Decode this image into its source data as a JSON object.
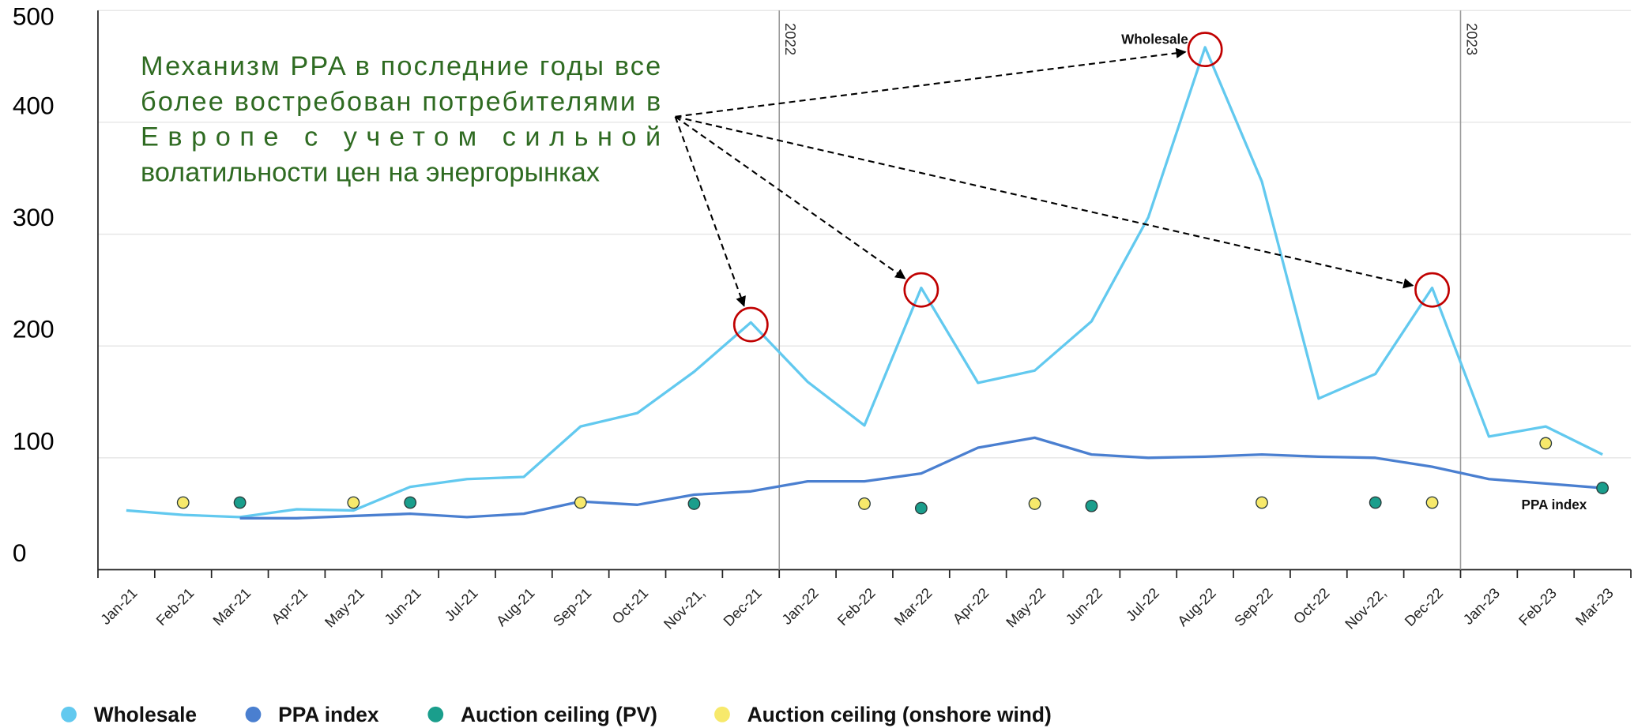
{
  "chart_data": {
    "type": "line",
    "categories": [
      "Jan-21",
      "Feb-21",
      "Mar-21",
      "Apr-21",
      "May-21",
      "Jun-21",
      "Jul-21",
      "Aug-21",
      "Sep-21",
      "Oct-21",
      "Nov-21,",
      "Dec-21",
      "Jan-22",
      "Feb-22",
      "Mar-22",
      "Apr-22",
      "May-22",
      "Jun-22",
      "Jul-22",
      "Aug-22",
      "Sep-22",
      "Oct-22",
      "Nov-22,",
      "Dec-22",
      "Jan-23",
      "Feb-23",
      "Mar-23"
    ],
    "series": [
      {
        "name": "Wholesale",
        "color": "#62c9ef",
        "style": "line",
        "values": [
          53,
          49,
          47,
          54,
          53,
          74,
          81,
          83,
          128,
          140,
          177,
          221,
          168,
          129,
          252,
          167,
          178,
          222,
          315,
          467,
          347,
          153,
          175,
          252,
          119,
          128,
          103
        ]
      },
      {
        "name": "PPA index",
        "color": "#4a7fd0",
        "style": "line",
        "values": [
          null,
          null,
          46,
          46,
          48,
          50,
          47,
          50,
          61,
          58,
          67,
          70,
          79,
          79,
          86,
          109,
          118,
          103,
          100,
          101,
          103,
          101,
          100,
          92,
          81,
          77,
          73
        ]
      },
      {
        "name": "Auction ceiling (PV)",
        "color": "#1a9e8c",
        "style": "dot",
        "values": [
          null,
          null,
          60,
          null,
          null,
          60,
          null,
          null,
          null,
          null,
          59,
          null,
          null,
          null,
          55,
          null,
          null,
          57,
          null,
          null,
          null,
          null,
          60,
          null,
          null,
          null,
          73
        ]
      },
      {
        "name": "Auction ceiling (onshore wind)",
        "color": "#f7e96b",
        "style": "dot",
        "values": [
          null,
          60,
          null,
          null,
          60,
          null,
          null,
          null,
          60,
          null,
          null,
          null,
          null,
          59,
          null,
          null,
          59,
          null,
          null,
          null,
          60,
          null,
          null,
          60,
          null,
          113,
          null
        ]
      }
    ],
    "ylim": [
      0,
      500
    ],
    "yticks": [
      0,
      100,
      200,
      300,
      400,
      500
    ],
    "grid": true,
    "legend": "bottom-left",
    "annotation_lines": [
      "Механизм PPA в последние годы все",
      "более востребован потребителями в",
      "Европе с учетом сильной",
      "волатильности цен на энергорынках"
    ],
    "annotation_color": "#2f6b22",
    "series_labels": [
      "Wholesale",
      "PPA index"
    ],
    "year_markers": [
      "2022",
      "2023"
    ]
  }
}
